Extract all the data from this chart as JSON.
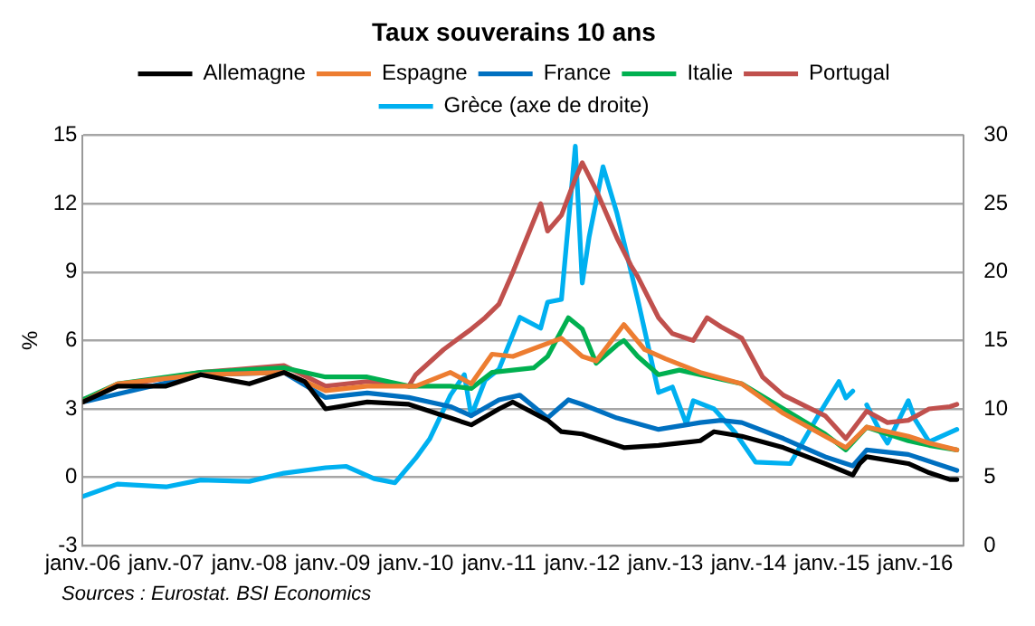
{
  "chart_data": {
    "type": "line",
    "title": "Taux souverains 10 ans",
    "ylabel": "%",
    "legend": "top",
    "grid": "y",
    "marker": "none",
    "line_style": "solid",
    "annotations": [
      "Sources : Eurostat. BSI Economics"
    ],
    "xlim": [
      "2006-01",
      "2016-08"
    ],
    "xticks": [
      {
        "value": "2006-01",
        "label": "janv.-06"
      },
      {
        "value": "2007-01",
        "label": "janv.-07"
      },
      {
        "value": "2008-01",
        "label": "janv.-08"
      },
      {
        "value": "2009-01",
        "label": "janv.-09"
      },
      {
        "value": "2010-01",
        "label": "janv.-10"
      },
      {
        "value": "2011-01",
        "label": "janv.-11"
      },
      {
        "value": "2012-01",
        "label": "janv.-12"
      },
      {
        "value": "2013-01",
        "label": "janv.-13"
      },
      {
        "value": "2014-01",
        "label": "janv.-14"
      },
      {
        "value": "2015-01",
        "label": "janv.-15"
      },
      {
        "value": "2016-01",
        "label": "janv.-16"
      }
    ],
    "ylim": [
      -3,
      15
    ],
    "yticks": [
      -3,
      0,
      3,
      6,
      9,
      12,
      15
    ],
    "y2lim": [
      0,
      30
    ],
    "y2ticks": [
      0,
      5,
      10,
      15,
      20,
      25,
      30
    ],
    "series": [
      {
        "name": "Allemagne",
        "color": "#000000",
        "x": [
          "2006-01",
          "2006-06",
          "2007-01",
          "2007-06",
          "2008-01",
          "2008-06",
          "2008-09",
          "2008-12",
          "2009-06",
          "2009-12",
          "2010-06",
          "2010-09",
          "2011-01",
          "2011-03",
          "2011-08",
          "2011-10",
          "2012-01",
          "2012-07",
          "2012-12",
          "2013-06",
          "2013-08",
          "2013-12",
          "2014-06",
          "2014-12",
          "2015-04",
          "2015-05",
          "2015-06",
          "2015-12",
          "2016-03",
          "2016-06",
          "2016-07"
        ],
        "values": [
          3.3,
          4.0,
          4.0,
          4.5,
          4.1,
          4.6,
          4.2,
          3.0,
          3.3,
          3.2,
          2.6,
          2.3,
          3.0,
          3.3,
          2.5,
          2.0,
          1.9,
          1.3,
          1.4,
          1.6,
          2.0,
          1.8,
          1.3,
          0.6,
          0.1,
          0.6,
          0.9,
          0.6,
          0.2,
          -0.1,
          -0.1
        ]
      },
      {
        "name": "Espagne",
        "color": "#ed7d31",
        "x": [
          "2006-01",
          "2006-06",
          "2007-06",
          "2008-06",
          "2008-12",
          "2009-06",
          "2010-01",
          "2010-06",
          "2010-09",
          "2010-12",
          "2011-03",
          "2011-10",
          "2012-01",
          "2012-03",
          "2012-07",
          "2012-10",
          "2013-01",
          "2013-06",
          "2013-12",
          "2014-06",
          "2014-12",
          "2015-03",
          "2015-06",
          "2015-12",
          "2016-03",
          "2016-07"
        ],
        "values": [
          3.3,
          4.1,
          4.5,
          4.6,
          3.8,
          4.0,
          4.0,
          4.6,
          4.1,
          5.4,
          5.3,
          6.1,
          5.3,
          5.1,
          6.7,
          5.6,
          5.2,
          4.6,
          4.1,
          2.8,
          1.8,
          1.3,
          2.2,
          1.8,
          1.5,
          1.2
        ]
      },
      {
        "name": "France",
        "color": "#0070c0",
        "x": [
          "2006-01",
          "2007-06",
          "2008-06",
          "2008-12",
          "2009-06",
          "2009-12",
          "2010-06",
          "2010-09",
          "2011-01",
          "2011-04",
          "2011-08",
          "2011-11",
          "2012-01",
          "2012-06",
          "2012-12",
          "2013-06",
          "2013-09",
          "2013-12",
          "2014-06",
          "2014-12",
          "2015-04",
          "2015-06",
          "2015-12",
          "2016-06",
          "2016-07"
        ],
        "values": [
          3.3,
          4.5,
          4.6,
          3.5,
          3.7,
          3.5,
          3.1,
          2.7,
          3.4,
          3.6,
          2.6,
          3.4,
          3.2,
          2.6,
          2.1,
          2.4,
          2.5,
          2.4,
          1.7,
          0.9,
          0.5,
          1.2,
          1.0,
          0.4,
          0.3
        ]
      },
      {
        "name": "Italie",
        "color": "#00b050",
        "x": [
          "2006-01",
          "2006-06",
          "2007-06",
          "2008-06",
          "2008-12",
          "2009-06",
          "2009-12",
          "2010-06",
          "2010-09",
          "2010-12",
          "2011-06",
          "2011-08",
          "2011-11",
          "2012-01",
          "2012-03",
          "2012-06",
          "2012-07",
          "2012-09",
          "2012-12",
          "2013-03",
          "2013-06",
          "2013-12",
          "2014-06",
          "2014-12",
          "2015-03",
          "2015-06",
          "2015-12",
          "2016-03",
          "2016-07"
        ],
        "values": [
          3.4,
          4.1,
          4.6,
          4.8,
          4.4,
          4.4,
          4.0,
          4.0,
          3.9,
          4.6,
          4.8,
          5.3,
          7.0,
          6.5,
          5.0,
          5.8,
          6.0,
          5.3,
          4.5,
          4.7,
          4.5,
          4.1,
          3.0,
          1.9,
          1.2,
          2.2,
          1.6,
          1.4,
          1.2
        ]
      },
      {
        "name": "Portugal",
        "color": "#c0504d",
        "x": [
          "2006-01",
          "2006-06",
          "2007-06",
          "2008-06",
          "2008-12",
          "2009-06",
          "2009-12",
          "2010-01",
          "2010-05",
          "2010-09",
          "2010-11",
          "2011-01",
          "2011-03",
          "2011-05",
          "2011-07",
          "2011-08",
          "2011-10",
          "2011-12",
          "2012-01",
          "2012-03",
          "2012-06",
          "2012-08",
          "2012-09",
          "2012-12",
          "2013-02",
          "2013-05",
          "2013-07",
          "2013-09",
          "2013-12",
          "2014-03",
          "2014-06",
          "2014-12",
          "2015-03",
          "2015-06",
          "2015-09",
          "2015-12",
          "2016-03",
          "2016-06",
          "2016-07"
        ],
        "values": [
          3.4,
          4.0,
          4.6,
          4.9,
          4.0,
          4.2,
          4.0,
          4.5,
          5.6,
          6.5,
          7.0,
          7.6,
          9.0,
          10.5,
          12.0,
          10.8,
          11.5,
          13.1,
          13.8,
          12.6,
          10.5,
          9.3,
          8.8,
          7.0,
          6.3,
          6.0,
          7.0,
          6.6,
          6.1,
          4.4,
          3.6,
          2.7,
          1.7,
          2.9,
          2.4,
          2.5,
          3.0,
          3.1,
          3.2
        ]
      },
      {
        "name": "Grèce (axe de droite)",
        "color": "#00b0f0",
        "axis": "y2",
        "x": [
          "2006-01",
          "2006-06",
          "2007-01",
          "2007-06",
          "2008-01",
          "2008-06",
          "2008-12",
          "2009-03",
          "2009-07",
          "2009-10",
          "2010-01",
          "2010-03",
          "2010-06",
          "2010-08",
          "2010-09",
          "2010-11",
          "2011-01",
          "2011-04",
          "2011-07",
          "2011-08",
          "2011-10",
          "2011-12",
          "2012-01",
          "2012-02",
          "2012-04",
          "2012-06",
          "2012-09",
          "2012-12",
          "2013-02",
          "2013-04",
          "2013-05",
          "2013-08",
          "2013-11",
          "2014-02",
          "2014-07",
          "2014-11",
          "2015-02",
          "2015-03",
          "2015-04",
          "2015-05",
          "2015-06",
          "2015-08",
          "2015-09",
          "2015-12",
          "2016-01",
          "2016-03",
          "2016-07"
        ],
        "values": [
          3.6,
          4.5,
          4.3,
          4.8,
          4.7,
          5.3,
          5.7,
          5.8,
          4.9,
          4.6,
          6.4,
          7.8,
          11.0,
          12.5,
          9.5,
          12.1,
          12.9,
          16.7,
          15.9,
          17.8,
          18.0,
          29.2,
          19.2,
          22.6,
          27.7,
          24.3,
          18.0,
          11.2,
          11.6,
          8.9,
          10.6,
          10.0,
          8.3,
          6.1,
          6.0,
          9.5,
          12.0,
          10.8,
          11.3,
          null,
          10.3,
          8.3,
          7.5,
          10.6,
          9.2,
          7.6,
          8.5
        ]
      }
    ]
  }
}
